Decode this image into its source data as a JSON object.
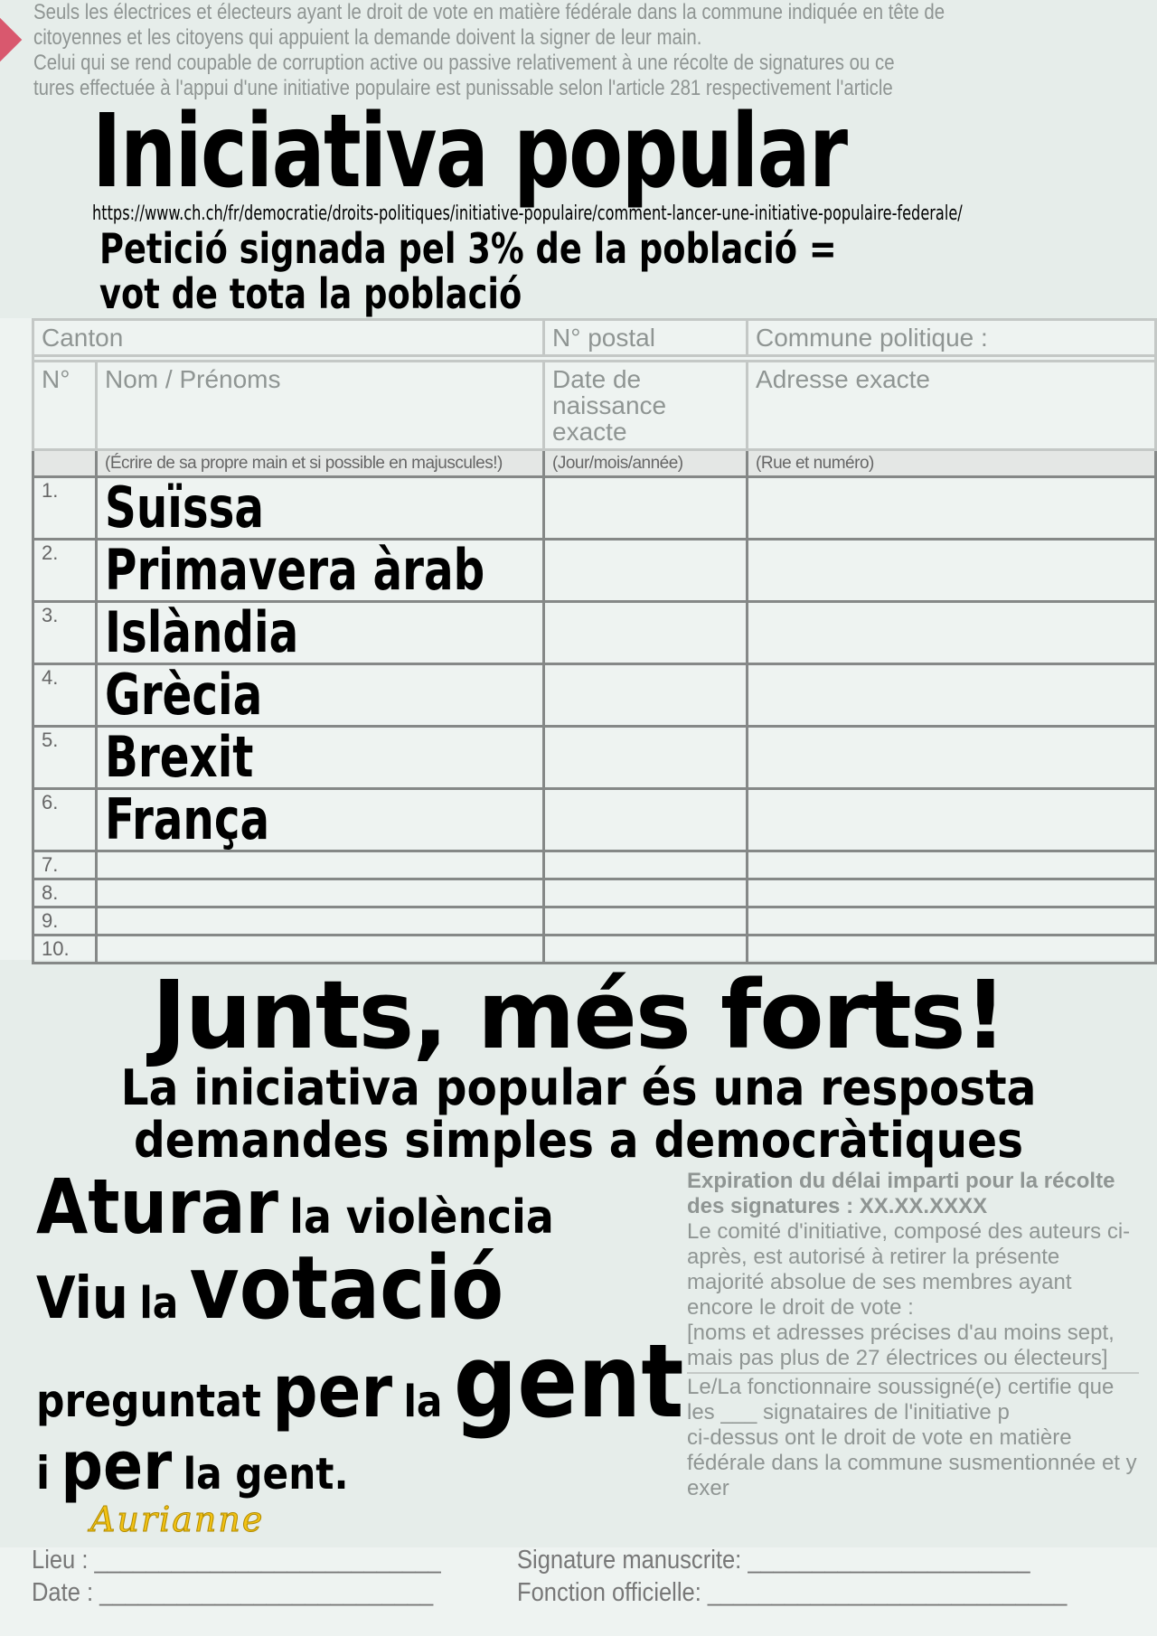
{
  "form": {
    "intro_lines": [
      "Seuls les électrices et électeurs ayant le droit de vote en matière fédérale dans la commune indiquée en tête de",
      "citoyennes et les citoyens qui appuient la demande doivent la signer de leur main.",
      "Celui qui se rend coupable de corruption active ou passive relativement à une récolte de signatures ou ce",
      "tures effectuée à l'appui d'une initiative populaire est punissable selon l'article 281 respectivement l'article"
    ],
    "canton_label": "Canton",
    "postal_label": "N° postal",
    "commune_label": "Commune politique :",
    "headers": [
      "N°",
      "Nom / Prénoms",
      "Date de naissance exacte",
      "Adresse exacte"
    ],
    "subheaders": [
      "(Écrire de sa propre main et si possible en majuscules!)",
      "(Jour/mois/année)",
      "(Rue et numéro)"
    ],
    "row_numbers": [
      "1.",
      "2.",
      "3.",
      "4.",
      "5.",
      "6.",
      "7.",
      "8.",
      "9.",
      "10."
    ],
    "expiration": "Expiration du délai imparti pour la récolte des signatures : XX.XX.XXXX",
    "committee_lines": [
      "Le comité d'initiative, composé des auteurs ci-après, est autorisé à retirer la présente",
      "majorité absolue de ses membres ayant encore le droit de vote :"
    ],
    "names_note": "[noms et adresses précises d'au moins sept, mais pas plus de 27 électrices ou électeurs]",
    "official_lines": [
      "Le/La fonctionnaire soussigné(e) certifie que les ___ signataires de l'initiative p",
      "ci-dessus ont le droit de vote en matière fédérale dans la commune susmentionnée et y exer"
    ],
    "lieu": "Lieu : ___________________________",
    "signature": "Signature manuscrite: ______________________",
    "date": "Date : __________________________",
    "fonction": "Fonction officielle: ____________________________"
  },
  "poster": {
    "title": "Iniciativa popular",
    "url": "https://www.ch.ch/fr/democratie/droits-politiques/initiative-populaire/comment-lancer-une-initiative-populaire-federale/",
    "subtitle_1": "Petició signada pel 3% de la població =",
    "subtitle_2": "vot de tota la població",
    "entries": [
      "Suïssa",
      "Primavera àrab",
      "Islàndia",
      "Grècia",
      "Brexit",
      "França"
    ],
    "slogan": "Junts, més forts!",
    "line1": "La iniciativa popular és una resposta",
    "line2": "demandes simples a democràtiques",
    "l3a": "Aturar",
    "l3b": "la violència",
    "l4a": "Viu",
    "l4b": "la",
    "l4c": "votació",
    "l5a": "preguntat",
    "l5b": "per",
    "l5c": "la",
    "l5d": "gent",
    "l6a": "i",
    "l6b": "per",
    "l6c": "la gent.",
    "signature": "Aurianne"
  },
  "colors": {
    "signature": "#f2c214",
    "arrow": "#d9586e"
  }
}
